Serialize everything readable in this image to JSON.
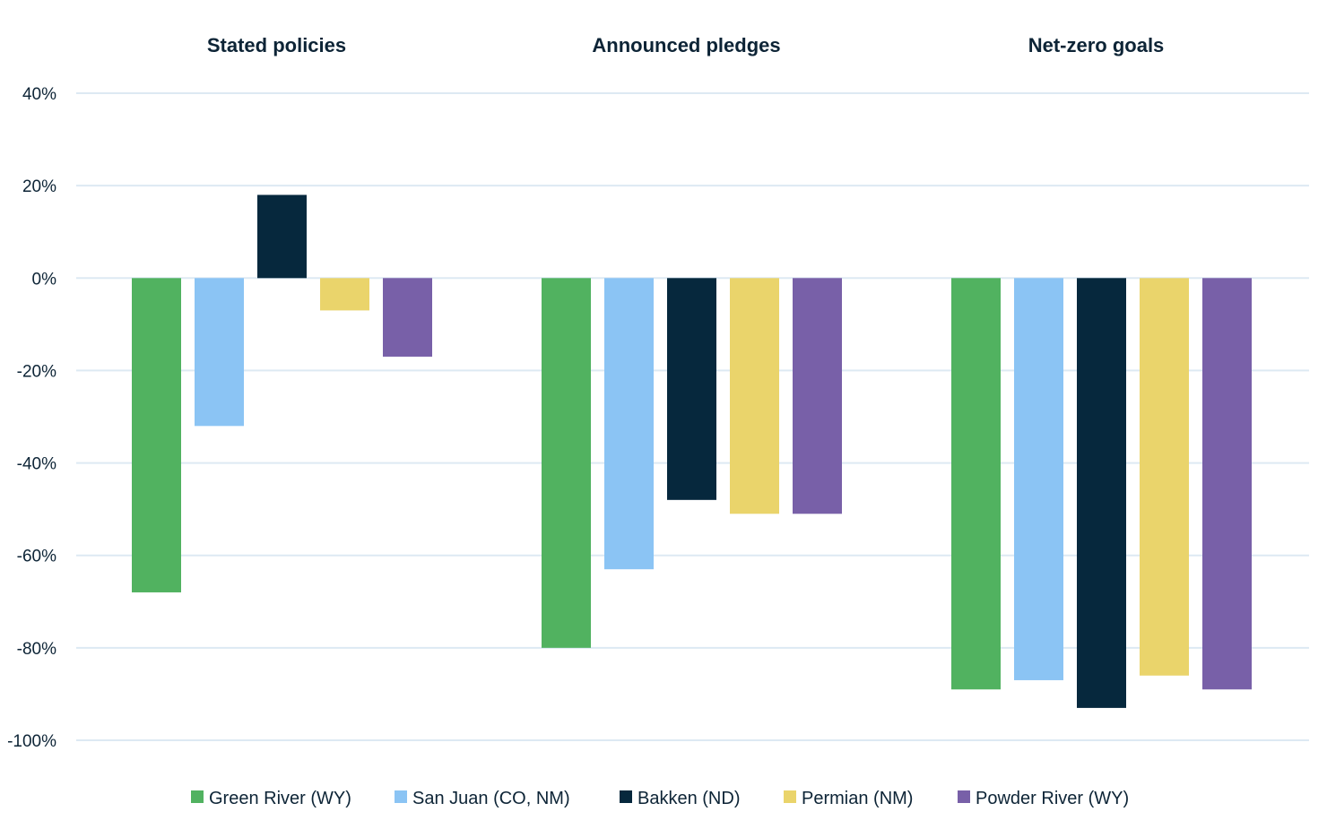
{
  "chart_data": {
    "type": "bar",
    "categories": [
      "Stated policies",
      "Announced pledges",
      "Net-zero goals"
    ],
    "series": [
      {
        "name": "Green River (WY)",
        "color": "#51b260",
        "values": [
          -68,
          -80,
          -89
        ]
      },
      {
        "name": "San Juan (CO, NM)",
        "color": "#8bc4f4",
        "values": [
          -32,
          -63,
          -87
        ]
      },
      {
        "name": "Bakken (ND)",
        "color": "#06283d",
        "values": [
          18,
          -48,
          -93
        ]
      },
      {
        "name": "Permian (NM)",
        "color": "#ead46b",
        "values": [
          -7,
          -51,
          -86
        ]
      },
      {
        "name": "Powder River (WY)",
        "color": "#7860a8",
        "values": [
          -17,
          -51,
          -89
        ]
      }
    ],
    "ylim": [
      -100,
      40
    ],
    "yticks": [
      40,
      20,
      0,
      -20,
      -40,
      -60,
      -80,
      -100
    ],
    "ytick_labels": [
      "40%",
      "20%",
      "0%",
      "-20%",
      "-40%",
      "-60%",
      "-80%",
      "-100%"
    ],
    "grid": true,
    "legend_position": "bottom",
    "title": "",
    "xlabel": "",
    "ylabel": ""
  }
}
